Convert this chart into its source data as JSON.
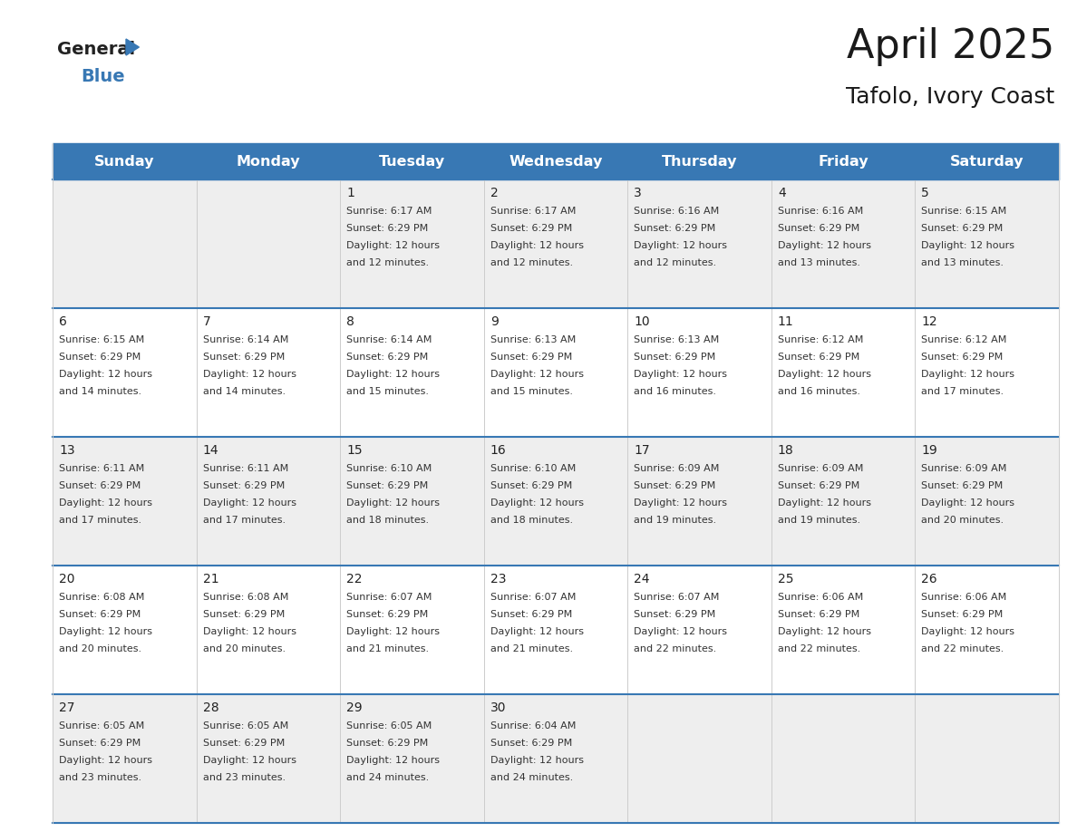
{
  "title": "April 2025",
  "subtitle": "Tafolo, Ivory Coast",
  "header_color": "#3878b4",
  "header_text_color": "#ffffff",
  "bg_color": "#ffffff",
  "row_colors": [
    "#eeeeee",
    "#ffffff"
  ],
  "border_color": "#3878b4",
  "cell_line_color": "#cccccc",
  "day_names": [
    "Sunday",
    "Monday",
    "Tuesday",
    "Wednesday",
    "Thursday",
    "Friday",
    "Saturday"
  ],
  "title_fontsize": 32,
  "subtitle_fontsize": 18,
  "header_fontsize": 11.5,
  "cell_fontsize": 8.0,
  "day_num_fontsize": 10,
  "logo_general_size": 14,
  "logo_blue_size": 14,
  "weeks": [
    [
      {
        "day": "",
        "sunrise": "",
        "sunset": "",
        "daylight": ""
      },
      {
        "day": "",
        "sunrise": "",
        "sunset": "",
        "daylight": ""
      },
      {
        "day": "1",
        "sunrise": "6:17 AM",
        "sunset": "6:29 PM",
        "daylight": "12 hours\nand 12 minutes."
      },
      {
        "day": "2",
        "sunrise": "6:17 AM",
        "sunset": "6:29 PM",
        "daylight": "12 hours\nand 12 minutes."
      },
      {
        "day": "3",
        "sunrise": "6:16 AM",
        "sunset": "6:29 PM",
        "daylight": "12 hours\nand 12 minutes."
      },
      {
        "day": "4",
        "sunrise": "6:16 AM",
        "sunset": "6:29 PM",
        "daylight": "12 hours\nand 13 minutes."
      },
      {
        "day": "5",
        "sunrise": "6:15 AM",
        "sunset": "6:29 PM",
        "daylight": "12 hours\nand 13 minutes."
      }
    ],
    [
      {
        "day": "6",
        "sunrise": "6:15 AM",
        "sunset": "6:29 PM",
        "daylight": "12 hours\nand 14 minutes."
      },
      {
        "day": "7",
        "sunrise": "6:14 AM",
        "sunset": "6:29 PM",
        "daylight": "12 hours\nand 14 minutes."
      },
      {
        "day": "8",
        "sunrise": "6:14 AM",
        "sunset": "6:29 PM",
        "daylight": "12 hours\nand 15 minutes."
      },
      {
        "day": "9",
        "sunrise": "6:13 AM",
        "sunset": "6:29 PM",
        "daylight": "12 hours\nand 15 minutes."
      },
      {
        "day": "10",
        "sunrise": "6:13 AM",
        "sunset": "6:29 PM",
        "daylight": "12 hours\nand 16 minutes."
      },
      {
        "day": "11",
        "sunrise": "6:12 AM",
        "sunset": "6:29 PM",
        "daylight": "12 hours\nand 16 minutes."
      },
      {
        "day": "12",
        "sunrise": "6:12 AM",
        "sunset": "6:29 PM",
        "daylight": "12 hours\nand 17 minutes."
      }
    ],
    [
      {
        "day": "13",
        "sunrise": "6:11 AM",
        "sunset": "6:29 PM",
        "daylight": "12 hours\nand 17 minutes."
      },
      {
        "day": "14",
        "sunrise": "6:11 AM",
        "sunset": "6:29 PM",
        "daylight": "12 hours\nand 17 minutes."
      },
      {
        "day": "15",
        "sunrise": "6:10 AM",
        "sunset": "6:29 PM",
        "daylight": "12 hours\nand 18 minutes."
      },
      {
        "day": "16",
        "sunrise": "6:10 AM",
        "sunset": "6:29 PM",
        "daylight": "12 hours\nand 18 minutes."
      },
      {
        "day": "17",
        "sunrise": "6:09 AM",
        "sunset": "6:29 PM",
        "daylight": "12 hours\nand 19 minutes."
      },
      {
        "day": "18",
        "sunrise": "6:09 AM",
        "sunset": "6:29 PM",
        "daylight": "12 hours\nand 19 minutes."
      },
      {
        "day": "19",
        "sunrise": "6:09 AM",
        "sunset": "6:29 PM",
        "daylight": "12 hours\nand 20 minutes."
      }
    ],
    [
      {
        "day": "20",
        "sunrise": "6:08 AM",
        "sunset": "6:29 PM",
        "daylight": "12 hours\nand 20 minutes."
      },
      {
        "day": "21",
        "sunrise": "6:08 AM",
        "sunset": "6:29 PM",
        "daylight": "12 hours\nand 20 minutes."
      },
      {
        "day": "22",
        "sunrise": "6:07 AM",
        "sunset": "6:29 PM",
        "daylight": "12 hours\nand 21 minutes."
      },
      {
        "day": "23",
        "sunrise": "6:07 AM",
        "sunset": "6:29 PM",
        "daylight": "12 hours\nand 21 minutes."
      },
      {
        "day": "24",
        "sunrise": "6:07 AM",
        "sunset": "6:29 PM",
        "daylight": "12 hours\nand 22 minutes."
      },
      {
        "day": "25",
        "sunrise": "6:06 AM",
        "sunset": "6:29 PM",
        "daylight": "12 hours\nand 22 minutes."
      },
      {
        "day": "26",
        "sunrise": "6:06 AM",
        "sunset": "6:29 PM",
        "daylight": "12 hours\nand 22 minutes."
      }
    ],
    [
      {
        "day": "27",
        "sunrise": "6:05 AM",
        "sunset": "6:29 PM",
        "daylight": "12 hours\nand 23 minutes."
      },
      {
        "day": "28",
        "sunrise": "6:05 AM",
        "sunset": "6:29 PM",
        "daylight": "12 hours\nand 23 minutes."
      },
      {
        "day": "29",
        "sunrise": "6:05 AM",
        "sunset": "6:29 PM",
        "daylight": "12 hours\nand 24 minutes."
      },
      {
        "day": "30",
        "sunrise": "6:04 AM",
        "sunset": "6:29 PM",
        "daylight": "12 hours\nand 24 minutes."
      },
      {
        "day": "",
        "sunrise": "",
        "sunset": "",
        "daylight": ""
      },
      {
        "day": "",
        "sunrise": "",
        "sunset": "",
        "daylight": ""
      },
      {
        "day": "",
        "sunrise": "",
        "sunset": "",
        "daylight": ""
      }
    ]
  ]
}
